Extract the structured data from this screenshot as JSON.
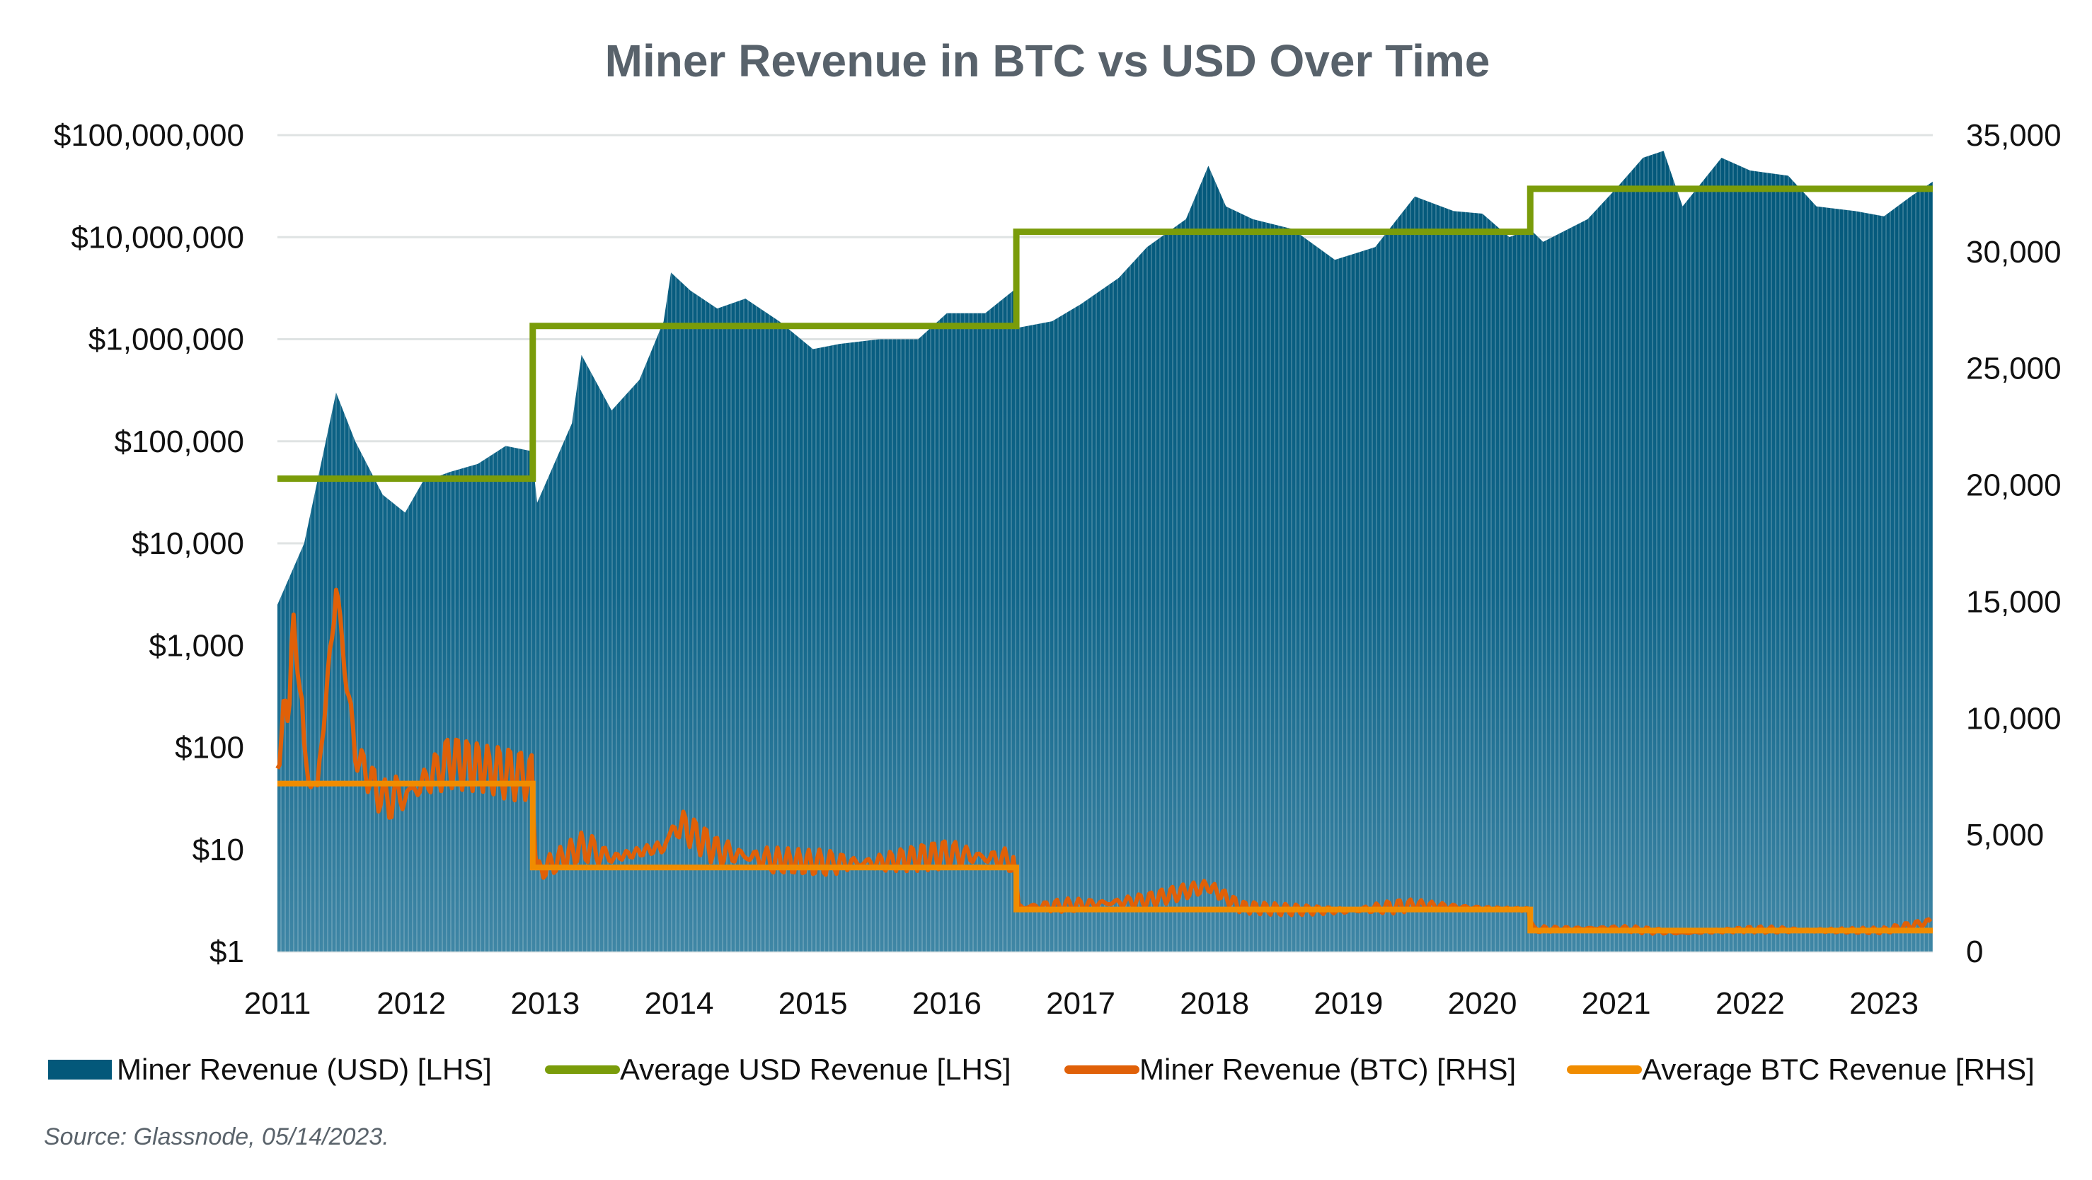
{
  "chart_data": {
    "type": "area+line",
    "title": "Miner Revenue in BTC vs USD Over Time",
    "source": "Source: Glassnode, 05/14/2023.",
    "x_ticks": [
      "2011",
      "2012",
      "2013",
      "2014",
      "2015",
      "2016",
      "2017",
      "2018",
      "2019",
      "2020",
      "2021",
      "2022",
      "2023"
    ],
    "y_left": {
      "scale": "log",
      "range": [
        1,
        100000000
      ],
      "ticks": [
        "$1",
        "$10",
        "$100",
        "$1,000",
        "$10,000",
        "$100,000",
        "$1,000,000",
        "$10,000,000",
        "$100,000,000"
      ]
    },
    "y_right": {
      "scale": "linear",
      "range": [
        0,
        35000
      ],
      "ticks": [
        "0",
        "5,000",
        "10,000",
        "15,000",
        "20,000",
        "25,000",
        "30,000",
        "35,000"
      ]
    },
    "grid": true,
    "legend_placement": "bottom",
    "colors": {
      "usd": "#03587a",
      "avg_usd": "#7a9c0a",
      "btc": "#e06008",
      "avg_btc": "#f08c00"
    },
    "series": [
      {
        "name": "Miner Revenue (USD) [LHS]",
        "axis": "left",
        "kind": "area",
        "points": [
          [
            "2011-01-01",
            2500
          ],
          [
            "2011-03-15",
            10000
          ],
          [
            "2011-06-10",
            300000
          ],
          [
            "2011-08-01",
            100000
          ],
          [
            "2011-10-15",
            30000
          ],
          [
            "2011-12-15",
            20000
          ],
          [
            "2012-02-01",
            40000
          ],
          [
            "2012-04-15",
            50000
          ],
          [
            "2012-07-01",
            60000
          ],
          [
            "2012-09-15",
            90000
          ],
          [
            "2012-11-25",
            80000
          ],
          [
            "2012-12-10",
            25000
          ],
          [
            "2013-03-15",
            150000
          ],
          [
            "2013-04-10",
            700000
          ],
          [
            "2013-07-01",
            200000
          ],
          [
            "2013-09-15",
            400000
          ],
          [
            "2013-11-20",
            1500000
          ],
          [
            "2013-12-10",
            4500000
          ],
          [
            "2014-02-01",
            3000000
          ],
          [
            "2014-04-15",
            2000000
          ],
          [
            "2014-07-01",
            2500000
          ],
          [
            "2014-10-01",
            1500000
          ],
          [
            "2015-01-01",
            800000
          ],
          [
            "2015-03-15",
            900000
          ],
          [
            "2015-07-01",
            1000000
          ],
          [
            "2015-10-15",
            1000000
          ],
          [
            "2016-01-01",
            1800000
          ],
          [
            "2016-04-15",
            1800000
          ],
          [
            "2016-07-01",
            3000000
          ],
          [
            "2016-07-15",
            1300000
          ],
          [
            "2016-10-15",
            1500000
          ],
          [
            "2017-01-01",
            2200000
          ],
          [
            "2017-04-15",
            4000000
          ],
          [
            "2017-07-01",
            8000000
          ],
          [
            "2017-10-15",
            15000000
          ],
          [
            "2017-12-15",
            50000000
          ],
          [
            "2018-02-01",
            20000000
          ],
          [
            "2018-04-15",
            15000000
          ],
          [
            "2018-08-01",
            12000000
          ],
          [
            "2018-11-25",
            6000000
          ],
          [
            "2019-03-15",
            8000000
          ],
          [
            "2019-07-01",
            25000000
          ],
          [
            "2019-10-15",
            18000000
          ],
          [
            "2020-01-01",
            17000000
          ],
          [
            "2020-03-15",
            10000000
          ],
          [
            "2020-05-10",
            12000000
          ],
          [
            "2020-06-15",
            9000000
          ],
          [
            "2020-10-15",
            15000000
          ],
          [
            "2021-01-01",
            30000000
          ],
          [
            "2021-03-15",
            60000000
          ],
          [
            "2021-05-10",
            70000000
          ],
          [
            "2021-07-01",
            20000000
          ],
          [
            "2021-10-15",
            60000000
          ],
          [
            "2022-01-01",
            45000000
          ],
          [
            "2022-04-15",
            40000000
          ],
          [
            "2022-07-01",
            20000000
          ],
          [
            "2022-10-15",
            18000000
          ],
          [
            "2023-01-01",
            16000000
          ],
          [
            "2023-03-15",
            25000000
          ],
          [
            "2023-05-14",
            35000000
          ]
        ]
      },
      {
        "name": "Average USD Revenue [LHS]",
        "axis": "left",
        "kind": "step",
        "points": [
          [
            "2011-01-01",
            43000
          ],
          [
            "2012-11-28",
            1350000
          ],
          [
            "2016-07-09",
            11300000
          ],
          [
            "2020-05-11",
            29800000
          ],
          [
            "2023-05-14",
            29800000
          ]
        ]
      },
      {
        "name": "Miner Revenue (BTC) [RHS]",
        "axis": "right",
        "kind": "line",
        "points": [
          [
            "2011-01-01",
            8000
          ],
          [
            "2011-02-25",
            14000
          ],
          [
            "2011-03-15",
            8000
          ],
          [
            "2011-04-20",
            7000
          ],
          [
            "2011-06-10",
            15500
          ],
          [
            "2011-08-01",
            8500
          ],
          [
            "2011-10-15",
            6500
          ],
          [
            "2012-01-01",
            6800
          ],
          [
            "2012-04-15",
            8200
          ],
          [
            "2012-08-01",
            7800
          ],
          [
            "2012-11-25",
            7500
          ],
          [
            "2012-12-10",
            3400
          ],
          [
            "2013-04-15",
            4500
          ],
          [
            "2013-07-01",
            4000
          ],
          [
            "2013-11-20",
            4500
          ],
          [
            "2014-01-01",
            5500
          ],
          [
            "2014-04-15",
            4300
          ],
          [
            "2014-09-15",
            3900
          ],
          [
            "2015-01-01",
            3800
          ],
          [
            "2015-07-01",
            3800
          ],
          [
            "2016-01-01",
            4200
          ],
          [
            "2016-07-01",
            3900
          ],
          [
            "2016-07-15",
            1900
          ],
          [
            "2017-01-01",
            2000
          ],
          [
            "2017-07-01",
            2200
          ],
          [
            "2017-12-15",
            2800
          ],
          [
            "2018-03-15",
            1900
          ],
          [
            "2018-07-01",
            1800
          ],
          [
            "2019-01-01",
            1750
          ],
          [
            "2019-07-01",
            2000
          ],
          [
            "2020-01-01",
            1850
          ],
          [
            "2020-05-05",
            1800
          ],
          [
            "2020-05-20",
            950
          ],
          [
            "2021-01-01",
            1000
          ],
          [
            "2021-07-01",
            800
          ],
          [
            "2022-01-01",
            950
          ],
          [
            "2022-07-01",
            900
          ],
          [
            "2023-01-01",
            900
          ],
          [
            "2023-05-14",
            1300
          ]
        ]
      },
      {
        "name": "Average BTC Revenue [RHS]",
        "axis": "right",
        "kind": "step",
        "points": [
          [
            "2011-01-01",
            7200
          ],
          [
            "2012-11-28",
            3600
          ],
          [
            "2016-07-09",
            1800
          ],
          [
            "2020-05-11",
            900
          ],
          [
            "2023-05-14",
            900
          ]
        ]
      }
    ]
  }
}
